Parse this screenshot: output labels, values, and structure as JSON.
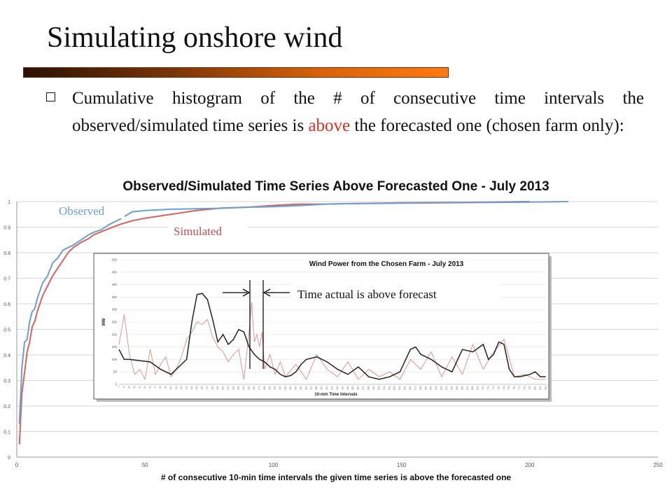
{
  "slide": {
    "title": "Simulating onshore wind",
    "bullet": {
      "pre": "Cumulative histogram of the # of consecutive time intervals the observed/simulated time series is ",
      "highlight": "above",
      "post": " the forecasted one (chosen farm only):"
    },
    "colors": {
      "accent": "#e03020",
      "observed": "#6a9fd4",
      "simulated": "#d9625a"
    }
  },
  "chart_data": [
    {
      "type": "line",
      "title": "Observed/Simulated Time Series Above Forecasted One - July 2013",
      "xlabel": "# of consecutive 10-min time intervals the given time series is above the forecasted one",
      "ylabel": "",
      "xlim": [
        0,
        250
      ],
      "ylim": [
        0,
        1
      ],
      "x_ticks": [
        "0",
        "50",
        "100",
        "150",
        "200",
        "250"
      ],
      "y_ticks": [
        "0",
        "0.1",
        "0.2",
        "0.3",
        "0.4",
        "0.5",
        "0.6",
        "0.7",
        "0.8",
        "0.9",
        "1"
      ],
      "grid": "horizontal",
      "annotations": [
        "Observed",
        "Simulated"
      ],
      "series": [
        {
          "name": "Observed",
          "x": [
            1,
            2,
            3,
            4,
            5,
            6,
            7,
            8,
            10,
            12,
            14,
            16,
            18,
            20,
            22,
            25,
            28,
            30,
            33,
            36,
            40,
            45,
            50,
            60,
            70,
            80,
            90,
            100,
            110,
            120,
            130,
            150,
            175,
            200,
            215
          ],
          "values": [
            0.13,
            0.35,
            0.45,
            0.46,
            0.53,
            0.57,
            0.58,
            0.62,
            0.68,
            0.71,
            0.76,
            0.78,
            0.81,
            0.82,
            0.83,
            0.85,
            0.87,
            0.88,
            0.89,
            0.91,
            0.93,
            0.96,
            0.965,
            0.97,
            0.972,
            0.974,
            0.978,
            0.98,
            0.984,
            0.99,
            0.992,
            0.994,
            0.996,
            0.998,
            1.0
          ]
        },
        {
          "name": "Simulated",
          "x": [
            1,
            2,
            3,
            4,
            5,
            6,
            7,
            8,
            10,
            12,
            14,
            16,
            18,
            20,
            22,
            25,
            28,
            30,
            35,
            40,
            45,
            50,
            60,
            70,
            80,
            90,
            100,
            110,
            120,
            130,
            150,
            175,
            200
          ],
          "values": [
            0.05,
            0.25,
            0.33,
            0.41,
            0.45,
            0.51,
            0.53,
            0.57,
            0.63,
            0.67,
            0.71,
            0.74,
            0.77,
            0.8,
            0.82,
            0.84,
            0.855,
            0.87,
            0.89,
            0.91,
            0.925,
            0.935,
            0.95,
            0.965,
            0.975,
            0.978,
            0.985,
            0.99,
            0.99,
            0.992,
            0.995,
            0.997,
            1.0
          ]
        }
      ]
    },
    {
      "type": "line",
      "title": "Wind Power from the Chosen Farm - July 2013",
      "xlabel": "10-min Time Intervals",
      "ylabel": "MW",
      "ylim": [
        0,
        500
      ],
      "y_ticks": [
        "0",
        "50",
        "100",
        "150",
        "200",
        "250",
        "300",
        "350",
        "400",
        "450",
        "500"
      ],
      "x_ticks": [
        "1",
        "11",
        "21",
        "31",
        "41",
        "51",
        "61",
        "71",
        "81",
        "91",
        "101",
        "111",
        "121",
        "131",
        "141",
        "151",
        "161",
        "171",
        "181",
        "191",
        "201",
        "211",
        "221",
        "231",
        "241",
        "251",
        "261",
        "271",
        "281",
        "291",
        "301",
        "311",
        "321",
        "331",
        "341",
        "351",
        "361",
        "371",
        "381",
        "391",
        "401",
        "411",
        "421",
        "431",
        "441",
        "451",
        "461",
        "471",
        "481",
        "491",
        "501",
        "511",
        "521",
        "531",
        "541",
        "551",
        "561",
        "571",
        "581",
        "591",
        "601",
        "611",
        "621",
        "631",
        "641",
        "651",
        "661",
        "671",
        "681",
        "691",
        "701",
        "711",
        "721",
        "731",
        "741",
        "751",
        "761",
        "771",
        "781",
        "791",
        "801",
        "811",
        "821"
      ],
      "grid": "horizontal",
      "annotation": "Time actual is above forecast",
      "series": [
        {
          "x": [
            0,
            10,
            20,
            40,
            60,
            80,
            100,
            110,
            120,
            130,
            140,
            150,
            160,
            170,
            180,
            190,
            200,
            210,
            220,
            230,
            240,
            250,
            260,
            270,
            280,
            290,
            300,
            310,
            320,
            330,
            340,
            350,
            360,
            380,
            400,
            420,
            440,
            460,
            480,
            500,
            520,
            540,
            560,
            570,
            580,
            590,
            600,
            620,
            640,
            660,
            680,
            700,
            710,
            720,
            730,
            740,
            750,
            760,
            770,
            780,
            790,
            800,
            810,
            820
          ],
          "values": [
            140,
            100,
            100,
            95,
            90,
            60,
            40,
            60,
            80,
            100,
            250,
            360,
            365,
            340,
            260,
            170,
            200,
            160,
            180,
            220,
            210,
            150,
            120,
            100,
            90,
            70,
            60,
            40,
            30,
            35,
            50,
            80,
            100,
            110,
            90,
            60,
            40,
            70,
            30,
            20,
            30,
            50,
            140,
            150,
            120,
            110,
            100,
            70,
            50,
            140,
            130,
            160,
            100,
            120,
            170,
            160,
            60,
            30,
            30,
            35,
            40,
            50,
            30,
            30
          ]
        },
        {
          "x": [
            0,
            10,
            20,
            30,
            40,
            50,
            60,
            70,
            80,
            90,
            100,
            110,
            120,
            130,
            140,
            150,
            160,
            170,
            180,
            190,
            200,
            210,
            220,
            230,
            240,
            250,
            255,
            260,
            265,
            270,
            275,
            280,
            290,
            300,
            310,
            320,
            340,
            360,
            380,
            400,
            420,
            440,
            460,
            480,
            500,
            520,
            540,
            560,
            580,
            600,
            620,
            640,
            660,
            680,
            700,
            720,
            740,
            760,
            780,
            800,
            820
          ],
          "values": [
            160,
            280,
            120,
            40,
            60,
            20,
            140,
            40,
            80,
            110,
            30,
            60,
            110,
            180,
            210,
            250,
            240,
            260,
            190,
            150,
            130,
            90,
            120,
            140,
            20,
            210,
            330,
            170,
            200,
            150,
            210,
            60,
            120,
            40,
            90,
            30,
            80,
            20,
            120,
            60,
            30,
            90,
            20,
            60,
            30,
            50,
            20,
            100,
            60,
            130,
            30,
            110,
            40,
            160,
            60,
            130,
            180,
            30,
            40,
            20,
            20
          ]
        }
      ]
    }
  ]
}
